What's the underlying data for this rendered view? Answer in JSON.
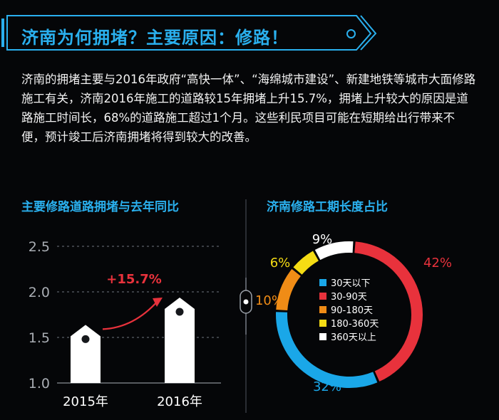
{
  "header": {
    "title": "济南为何拥堵？主要原因：修路！"
  },
  "intro": {
    "text": "济南的拥堵主要与2016年政府“高快一体”、“海绵城市建设”、新建地铁等城市大面修路施工有关，济南2016年施工的道路较15年拥堵上升15.7%，拥堵上升较大的原因是道路施工时间长，68%的道路施工超过1个月。这些利民项目可能在短期给出行带来不便，预计竣工后济南拥堵将得到较大的改善。"
  },
  "colors": {
    "accent": "#2ab0ee",
    "bar": "#ffffff",
    "pct_label": "#e8323c"
  },
  "chart_data": [
    {
      "type": "bar",
      "title": "主要修路道路拥堵与去年同比",
      "categories": [
        "2015年",
        "2016年"
      ],
      "values": [
        1.7,
        2.0
      ],
      "yticks": [
        "1.0",
        "1.5",
        "2.0",
        "2.5"
      ],
      "ylim": [
        1.0,
        2.5
      ],
      "annotation": "+15.7%",
      "grid": true
    },
    {
      "type": "pie",
      "title": "济南修路工期长度占比",
      "slices": [
        {
          "label": "30天以下",
          "value": 32,
          "value_label": "32%",
          "color": "#1aa7e8"
        },
        {
          "label": "30-90天",
          "value": 42,
          "value_label": "42%",
          "color": "#e8323c"
        },
        {
          "label": "90-180天",
          "value": 10,
          "value_label": "10%",
          "color": "#f08c16"
        },
        {
          "label": "180-360天",
          "value": 6,
          "value_label": "6%",
          "color": "#f5dc14"
        },
        {
          "label": "360天以上",
          "value": 9,
          "value_label": "9%",
          "color": "#ffffff"
        }
      ]
    }
  ]
}
